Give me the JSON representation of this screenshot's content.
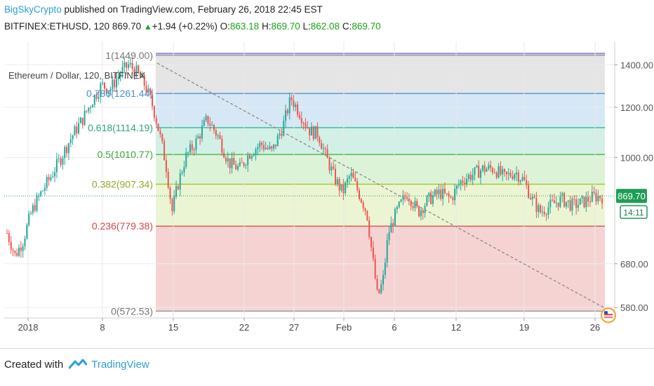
{
  "header": {
    "author": "BigSkyCrypto",
    "published_text": "published on TradingView.com, February 26, 2018 22:45 EST",
    "symbol": "BITFINEX:ETHUSD, 120",
    "last": "869.70",
    "change": "+1.94 (+0.22%)",
    "o_label": "O:",
    "o_val": "863.18",
    "h_label": "H:",
    "h_val": "869.70",
    "l_label": "L:",
    "l_val": "862.08",
    "c_label": "C:",
    "c_val": "869.70"
  },
  "footer": {
    "created_with": "Created with",
    "brand": "TradingView"
  },
  "colors": {
    "up": "#26a69a",
    "down": "#ef5350",
    "accent": "#2a9fd8",
    "price_tag": "#1e9e54"
  },
  "chart_data": {
    "type": "candlestick",
    "title": "Ethereum / Dollar, 120, BITFINEX",
    "x_ticks": [
      "2018",
      "8",
      "15",
      "22",
      "27",
      "Feb",
      "6",
      "12",
      "19",
      "26"
    ],
    "y_ticks": [
      "1400.00",
      "1200.00",
      "1000.00",
      "680.00",
      "580.00"
    ],
    "y_scale": "log",
    "ylim": [
      560,
      1520
    ],
    "current_price": "869.70",
    "countdown": "14:11",
    "fib_levels": [
      {
        "ratio": "1",
        "price": 1449.0,
        "label": "1(1449.00)",
        "line": "#9e9e9e",
        "fill": "#e5e5e5",
        "label_color": "#777777"
      },
      {
        "ratio": "0.786",
        "price": 1261.44,
        "label": "0.786(1261.44)",
        "line": "#5b9bd5",
        "fill": "#d6e8f5",
        "label_color": "#4a90c8"
      },
      {
        "ratio": "0.618",
        "price": 1114.19,
        "label": "0.618(1114.19)",
        "line": "#3dbf9a",
        "fill": "#d2f0e6",
        "label_color": "#2ea57f"
      },
      {
        "ratio": "0.5",
        "price": 1010.77,
        "label": "0.5(1010.77)",
        "line": "#4cbf4c",
        "fill": "#dcf3d8",
        "label_color": "#3aa43a"
      },
      {
        "ratio": "0.382",
        "price": 907.34,
        "label": "0.382(907.34)",
        "line": "#a5c93a",
        "fill": "#ecf5d3",
        "label_color": "#8fa92a"
      },
      {
        "ratio": "0.236",
        "price": 779.38,
        "label": "0.236(779.38)",
        "line": "#e05a5a",
        "fill": "#f6d3d3",
        "label_color": "#d64545"
      },
      {
        "ratio": "0",
        "price": 572.53,
        "label": "0(572.53)",
        "line": "#9e9e9e",
        "fill": "",
        "label_color": "#777777"
      }
    ],
    "top_band_color": "#ccc8ef",
    "top_band_line": "#8a82d6",
    "price_path": [
      {
        "t": 0,
        "p": 760
      },
      {
        "t": 3,
        "p": 700
      },
      {
        "t": 6,
        "p": 740
      },
      {
        "t": 9,
        "p": 820
      },
      {
        "t": 12,
        "p": 870
      },
      {
        "t": 16,
        "p": 930
      },
      {
        "t": 20,
        "p": 1000
      },
      {
        "t": 24,
        "p": 1080
      },
      {
        "t": 28,
        "p": 1150
      },
      {
        "t": 32,
        "p": 1240
      },
      {
        "t": 35,
        "p": 1300
      },
      {
        "t": 38,
        "p": 1280
      },
      {
        "t": 42,
        "p": 1360
      },
      {
        "t": 45,
        "p": 1400
      },
      {
        "t": 48,
        "p": 1360
      },
      {
        "t": 51,
        "p": 1300
      },
      {
        "t": 54,
        "p": 1200
      },
      {
        "t": 57,
        "p": 1060
      },
      {
        "t": 59,
        "p": 960
      },
      {
        "t": 61,
        "p": 820
      },
      {
        "t": 63,
        "p": 900
      },
      {
        "t": 66,
        "p": 1000
      },
      {
        "t": 70,
        "p": 1060
      },
      {
        "t": 74,
        "p": 1150
      },
      {
        "t": 78,
        "p": 1080
      },
      {
        "t": 82,
        "p": 980
      },
      {
        "t": 86,
        "p": 960
      },
      {
        "t": 90,
        "p": 1020
      },
      {
        "t": 94,
        "p": 1050
      },
      {
        "t": 98,
        "p": 1020
      },
      {
        "t": 102,
        "p": 1120
      },
      {
        "t": 105,
        "p": 1240
      },
      {
        "t": 108,
        "p": 1180
      },
      {
        "t": 112,
        "p": 1100
      },
      {
        "t": 115,
        "p": 1090
      },
      {
        "t": 118,
        "p": 1000
      },
      {
        "t": 121,
        "p": 930
      },
      {
        "t": 124,
        "p": 880
      },
      {
        "t": 127,
        "p": 940
      },
      {
        "t": 130,
        "p": 880
      },
      {
        "t": 133,
        "p": 820
      },
      {
        "t": 135,
        "p": 700
      },
      {
        "t": 137,
        "p": 600
      },
      {
        "t": 139,
        "p": 640
      },
      {
        "t": 141,
        "p": 760
      },
      {
        "t": 144,
        "p": 820
      },
      {
        "t": 148,
        "p": 880
      },
      {
        "t": 152,
        "p": 820
      },
      {
        "t": 156,
        "p": 860
      },
      {
        "t": 160,
        "p": 880
      },
      {
        "t": 164,
        "p": 860
      },
      {
        "t": 168,
        "p": 920
      },
      {
        "t": 172,
        "p": 940
      },
      {
        "t": 176,
        "p": 960
      },
      {
        "t": 180,
        "p": 960
      },
      {
        "t": 184,
        "p": 930
      },
      {
        "t": 188,
        "p": 950
      },
      {
        "t": 191,
        "p": 920
      },
      {
        "t": 194,
        "p": 860
      },
      {
        "t": 197,
        "p": 820
      },
      {
        "t": 201,
        "p": 840
      },
      {
        "t": 205,
        "p": 860
      },
      {
        "t": 209,
        "p": 840
      },
      {
        "t": 213,
        "p": 850
      },
      {
        "t": 217,
        "p": 868
      }
    ]
  }
}
